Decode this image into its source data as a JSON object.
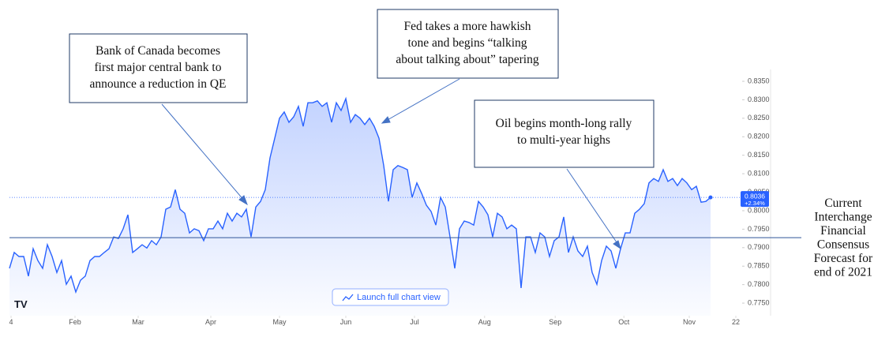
{
  "chart_data": {
    "type": "line",
    "color": "#2962ff",
    "x": [
      0,
      1,
      2,
      3,
      4,
      5,
      6,
      7,
      8,
      9,
      10,
      11,
      12,
      13,
      14,
      15,
      16,
      17,
      18,
      19,
      20,
      21,
      22,
      23,
      24,
      25,
      26,
      27,
      28,
      29,
      30,
      31,
      32,
      33,
      34,
      35,
      36,
      37,
      38,
      39,
      40,
      41,
      42,
      43,
      44,
      45,
      46,
      47,
      48,
      49,
      50,
      51,
      52,
      53,
      54,
      55,
      56,
      57,
      58,
      59,
      60,
      61,
      62,
      63,
      64,
      65,
      66,
      67,
      68,
      69,
      70,
      71,
      72,
      73,
      74,
      75,
      76,
      77,
      78,
      79,
      80,
      81,
      82,
      83,
      84,
      85,
      86,
      87,
      88,
      89,
      90,
      91,
      92,
      93,
      94,
      95,
      96,
      97,
      98,
      99,
      100,
      101,
      102,
      103,
      104,
      105,
      106,
      107,
      108,
      109,
      110,
      111,
      112,
      113,
      114,
      115,
      116,
      117,
      118,
      119,
      120,
      121,
      122,
      123,
      124,
      125,
      126,
      127,
      128,
      129,
      130,
      131,
      132,
      133,
      134,
      135,
      136,
      137,
      138,
      139,
      140,
      141,
      142,
      143,
      144,
      145,
      146,
      147,
      148
    ],
    "values": [
      0.7844,
      0.7887,
      0.7876,
      0.7876,
      0.7823,
      0.7897,
      0.7865,
      0.7844,
      0.7908,
      0.7876,
      0.7833,
      0.7865,
      0.7801,
      0.7823,
      0.778,
      0.7812,
      0.7823,
      0.7865,
      0.7876,
      0.7876,
      0.7887,
      0.7897,
      0.7929,
      0.7925,
      0.7951,
      0.7989,
      0.7887,
      0.7897,
      0.7908,
      0.7899,
      0.7919,
      0.7908,
      0.7929,
      0.8004,
      0.801,
      0.8057,
      0.8004,
      0.7993,
      0.794,
      0.7951,
      0.7946,
      0.7919,
      0.7951,
      0.7951,
      0.7972,
      0.7951,
      0.7993,
      0.7972,
      0.7993,
      0.7983,
      0.8004,
      0.7929,
      0.801,
      0.8025,
      0.8057,
      0.8143,
      0.8196,
      0.825,
      0.8267,
      0.8239,
      0.8254,
      0.8282,
      0.8228,
      0.8292,
      0.8292,
      0.8297,
      0.8282,
      0.8292,
      0.8239,
      0.8292,
      0.8271,
      0.8303,
      0.8239,
      0.826,
      0.825,
      0.8233,
      0.825,
      0.8228,
      0.8196,
      0.8122,
      0.8025,
      0.8111,
      0.8122,
      0.8117,
      0.8111,
      0.8036,
      0.8075,
      0.8047,
      0.8015,
      0.7998,
      0.7961,
      0.8036,
      0.801,
      0.7929,
      0.7844,
      0.7951,
      0.7972,
      0.7968,
      0.7961,
      0.8025,
      0.801,
      0.7989,
      0.7929,
      0.7993,
      0.7983,
      0.7951,
      0.7961,
      0.7951,
      0.7791,
      0.7929,
      0.7929,
      0.7887,
      0.794,
      0.7929,
      0.7876,
      0.7919,
      0.7929,
      0.7983,
      0.7887,
      0.7929,
      0.7891,
      0.7876,
      0.7904,
      0.7833,
      0.7801,
      0.7865,
      0.7904,
      0.7891,
      0.7844,
      0.7897,
      0.794,
      0.794,
      0.7993,
      0.8004,
      0.8019,
      0.8075,
      0.8087,
      0.8079,
      0.8111,
      0.8079,
      0.8087,
      0.8068,
      0.8087,
      0.8075,
      0.8057,
      0.8066,
      0.8023,
      0.8025,
      0.8036
    ],
    "xlim": [
      0,
      153.5
    ],
    "xticks": [
      {
        "value": 0.33,
        "label": "4"
      },
      {
        "value": 13.83,
        "label": "Feb"
      },
      {
        "value": 27.17,
        "label": "Mar"
      },
      {
        "value": 42.5,
        "label": "Apr"
      },
      {
        "value": 57,
        "label": "May"
      },
      {
        "value": 71,
        "label": "Jun"
      },
      {
        "value": 85.5,
        "label": "Jul"
      },
      {
        "value": 100.3,
        "label": "Aug"
      },
      {
        "value": 115.2,
        "label": "Sep"
      },
      {
        "value": 129.7,
        "label": "Oct"
      },
      {
        "value": 143.5,
        "label": "Nov"
      },
      {
        "value": 153.33,
        "label": "22"
      }
    ],
    "ylim": [
      0.7716,
      0.8382
    ],
    "yticks": [
      {
        "value": 0.775,
        "label": "0.7750"
      },
      {
        "value": 0.78,
        "label": "0.7800"
      },
      {
        "value": 0.785,
        "label": "0.7850"
      },
      {
        "value": 0.79,
        "label": "0.7900"
      },
      {
        "value": 0.795,
        "label": "0.7950"
      },
      {
        "value": 0.8,
        "label": "0.8000"
      },
      {
        "value": 0.805,
        "label": "0.8050"
      },
      {
        "value": 0.81,
        "label": "0.8100"
      },
      {
        "value": 0.815,
        "label": "0.8150"
      },
      {
        "value": 0.82,
        "label": "0.8200"
      },
      {
        "value": 0.825,
        "label": "0.8250"
      },
      {
        "value": 0.83,
        "label": "0.8300"
      },
      {
        "value": 0.835,
        "label": "0.8350"
      }
    ],
    "last_price": 0.8036,
    "last_change": {
      "value": 2.34,
      "label": "+2.34%"
    },
    "reference_line": 0.7927,
    "reference_label": [
      "Current",
      "Interchange",
      "Financial",
      "Consensus",
      "Forecast for",
      "end of 2021"
    ],
    "annotations": [
      {
        "lines": [
          "Bank of Canada becomes",
          "first major central bank to",
          "announce a reduction in QE"
        ]
      },
      {
        "lines": [
          "Fed takes a more hawkish",
          "tone and begins “talking",
          "about talking about” tapering"
        ]
      },
      {
        "lines": [
          "Oil begins month-long rally",
          "to multi-year highs"
        ]
      }
    ]
  },
  "ui": {
    "button": "Launch full chart view"
  }
}
